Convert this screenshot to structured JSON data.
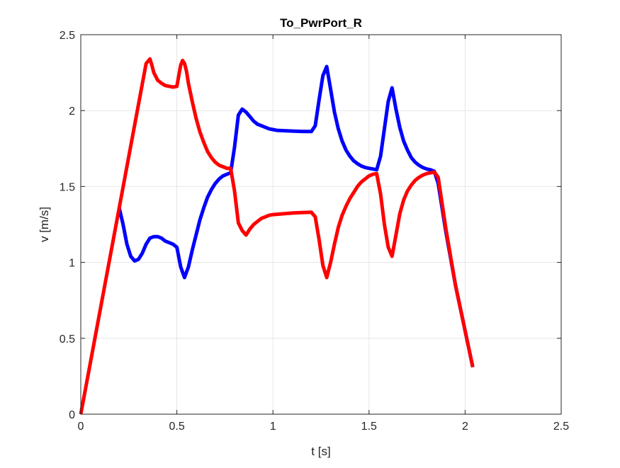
{
  "chart_data": {
    "type": "line",
    "title": "To_PwrPort_R",
    "xlabel": "t [s]",
    "ylabel": "v [m/s]",
    "xlim": [
      0,
      2.5
    ],
    "ylim": [
      0,
      2.5
    ],
    "xticks": [
      0,
      0.5,
      1,
      1.5,
      2,
      2.5
    ],
    "xtick_labels": [
      "0",
      "0.5",
      "1",
      "1.5",
      "2",
      "2.5"
    ],
    "yticks": [
      0,
      0.5,
      1,
      1.5,
      2,
      2.5
    ],
    "ytick_labels": [
      "0",
      "0.5",
      "1",
      "1.5",
      "2",
      "2.5"
    ],
    "grid": true,
    "legend": "none",
    "series": [
      {
        "color": "#0000ff",
        "x": [
          0.2,
          0.22,
          0.24,
          0.26,
          0.28,
          0.3,
          0.32,
          0.34,
          0.36,
          0.38,
          0.4,
          0.42,
          0.44,
          0.46,
          0.48,
          0.5,
          0.52,
          0.54,
          0.56,
          0.58,
          0.6,
          0.62,
          0.64,
          0.66,
          0.68,
          0.7,
          0.72,
          0.74,
          0.76,
          0.78,
          0.8,
          0.82,
          0.84,
          0.86,
          0.88,
          0.9,
          0.92,
          0.94,
          0.96,
          0.98,
          1.0,
          1.02,
          1.05,
          1.1,
          1.15,
          1.2,
          1.22,
          1.24,
          1.26,
          1.28,
          1.3,
          1.32,
          1.34,
          1.36,
          1.38,
          1.4,
          1.42,
          1.44,
          1.46,
          1.48,
          1.5,
          1.52,
          1.54,
          1.56,
          1.58,
          1.6,
          1.62,
          1.64,
          1.66,
          1.68,
          1.7,
          1.72,
          1.74,
          1.76,
          1.78,
          1.8,
          1.82,
          1.84,
          1.86,
          1.9,
          1.95,
          2.0,
          2.04
        ],
        "y": [
          1.36,
          1.25,
          1.12,
          1.04,
          1.01,
          1.02,
          1.06,
          1.12,
          1.16,
          1.17,
          1.17,
          1.16,
          1.14,
          1.13,
          1.12,
          1.1,
          0.97,
          0.9,
          0.97,
          1.08,
          1.18,
          1.28,
          1.36,
          1.43,
          1.48,
          1.52,
          1.55,
          1.57,
          1.58,
          1.59,
          1.76,
          1.97,
          2.01,
          1.99,
          1.96,
          1.93,
          1.91,
          1.9,
          1.89,
          1.88,
          1.875,
          1.87,
          1.868,
          1.865,
          1.863,
          1.862,
          1.9,
          2.07,
          2.23,
          2.29,
          2.14,
          1.99,
          1.88,
          1.8,
          1.74,
          1.7,
          1.67,
          1.65,
          1.635,
          1.625,
          1.62,
          1.615,
          1.61,
          1.7,
          1.88,
          2.06,
          2.15,
          2.01,
          1.89,
          1.8,
          1.74,
          1.69,
          1.66,
          1.64,
          1.625,
          1.615,
          1.61,
          1.6,
          1.52,
          1.2,
          0.85,
          0.55,
          0.31
        ]
      },
      {
        "color": "#ff0000",
        "x": [
          0.0,
          0.34,
          0.36,
          0.37,
          0.38,
          0.4,
          0.42,
          0.44,
          0.46,
          0.48,
          0.5,
          0.52,
          0.53,
          0.54,
          0.55,
          0.56,
          0.58,
          0.6,
          0.62,
          0.64,
          0.66,
          0.68,
          0.7,
          0.72,
          0.74,
          0.76,
          0.78,
          0.8,
          0.82,
          0.84,
          0.86,
          0.88,
          0.9,
          0.92,
          0.94,
          0.96,
          0.98,
          1.0,
          1.05,
          1.1,
          1.15,
          1.2,
          1.22,
          1.24,
          1.26,
          1.28,
          1.3,
          1.32,
          1.34,
          1.36,
          1.38,
          1.4,
          1.42,
          1.44,
          1.46,
          1.48,
          1.5,
          1.52,
          1.54,
          1.56,
          1.58,
          1.6,
          1.62,
          1.64,
          1.66,
          1.68,
          1.7,
          1.72,
          1.74,
          1.76,
          1.78,
          1.8,
          1.82,
          1.84,
          1.86,
          1.9,
          1.95,
          2.0,
          2.04
        ],
        "y": [
          0.0,
          2.31,
          2.34,
          2.3,
          2.25,
          2.2,
          2.18,
          2.165,
          2.16,
          2.155,
          2.16,
          2.3,
          2.33,
          2.31,
          2.26,
          2.18,
          2.06,
          1.95,
          1.86,
          1.79,
          1.73,
          1.69,
          1.66,
          1.64,
          1.63,
          1.62,
          1.62,
          1.47,
          1.26,
          1.21,
          1.18,
          1.22,
          1.25,
          1.27,
          1.29,
          1.3,
          1.31,
          1.315,
          1.32,
          1.325,
          1.328,
          1.33,
          1.3,
          1.15,
          0.98,
          0.9,
          1.0,
          1.12,
          1.23,
          1.31,
          1.37,
          1.42,
          1.46,
          1.5,
          1.53,
          1.55,
          1.57,
          1.58,
          1.585,
          1.45,
          1.25,
          1.1,
          1.04,
          1.18,
          1.32,
          1.41,
          1.47,
          1.51,
          1.54,
          1.56,
          1.575,
          1.585,
          1.59,
          1.595,
          1.56,
          1.22,
          0.85,
          0.55,
          0.31
        ]
      }
    ]
  }
}
